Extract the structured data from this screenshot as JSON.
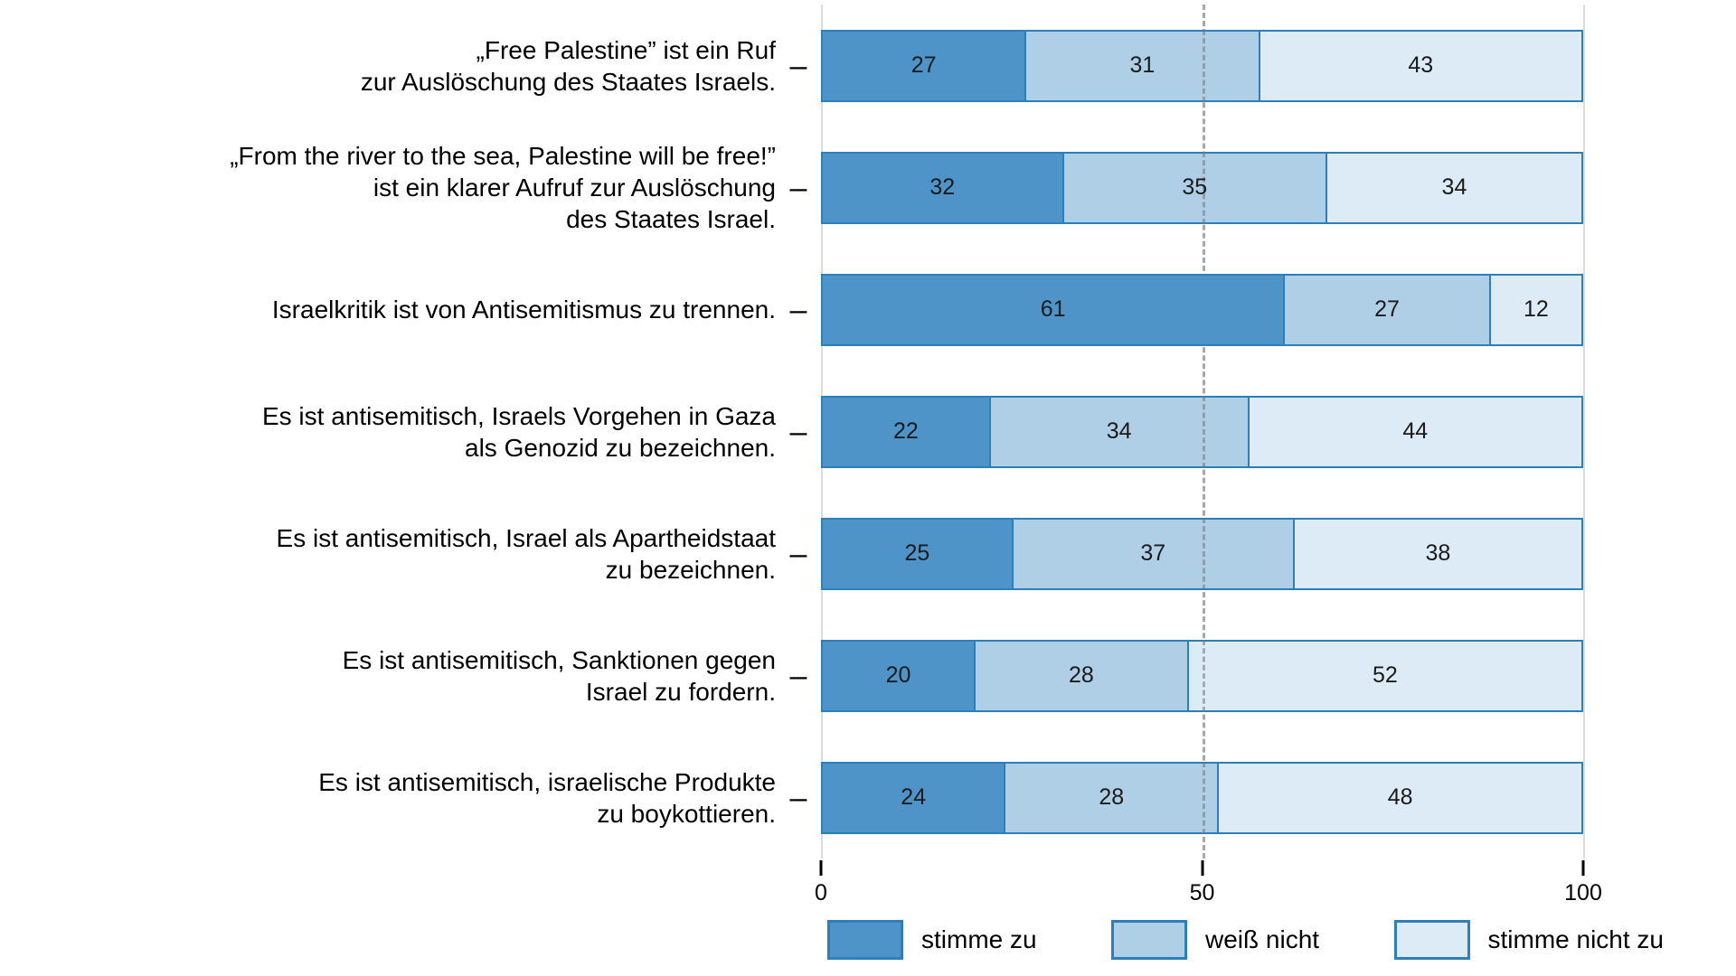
{
  "chart_data": {
    "type": "bar",
    "orientation": "horizontal",
    "stacked": true,
    "title": "",
    "categories": [
      "„Free Palestine” ist ein Ruf\nzur Auslöschung des Staates Israels.",
      "„From the river to the sea, Palestine will be free!”\nist ein klarer Aufruf zur Auslöschung\ndes Staates Israel.",
      "Israelkritik ist von Antisemitismus zu trennen.",
      "Es ist antisemitisch, Israels Vorgehen in Gaza\nals Genozid zu bezeichnen.",
      "Es ist antisemitisch, Israel als Apartheidstaat\nzu bezeichnen.",
      "Es ist antisemitisch, Sanktionen gegen\nIsrael zu fordern.",
      "Es ist antisemitisch, israelische Produkte\nzu boykottieren."
    ],
    "series": [
      {
        "name": "stimme zu",
        "color": "#4f94c9",
        "opaque": true,
        "values": [
          27,
          32,
          61,
          22,
          25,
          20,
          24
        ]
      },
      {
        "name": "weiß nicht",
        "color": "#afcfe6",
        "opaque": false,
        "values": [
          31,
          35,
          27,
          34,
          37,
          28,
          28
        ]
      },
      {
        "name": "stimme nicht zu",
        "color": "#dcebf6",
        "opaque": false,
        "values": [
          43,
          34,
          12,
          44,
          38,
          52,
          48
        ]
      }
    ],
    "x_axis": {
      "range": [
        0,
        100
      ],
      "ticks": [
        "0",
        "50",
        "100"
      ],
      "tick_positions": [
        0,
        50,
        100
      ]
    },
    "reference_line": 50,
    "grid": "vertical-at-0-50-100",
    "legend_position": "bottom"
  },
  "ui": {
    "y_tick_glyph": "–",
    "segment_border_color": "#2c7fba",
    "gridline_color": "#dcdcdc",
    "dashed_line_color": "#a8a8a8",
    "value_text_color": "#1a1a1a"
  }
}
